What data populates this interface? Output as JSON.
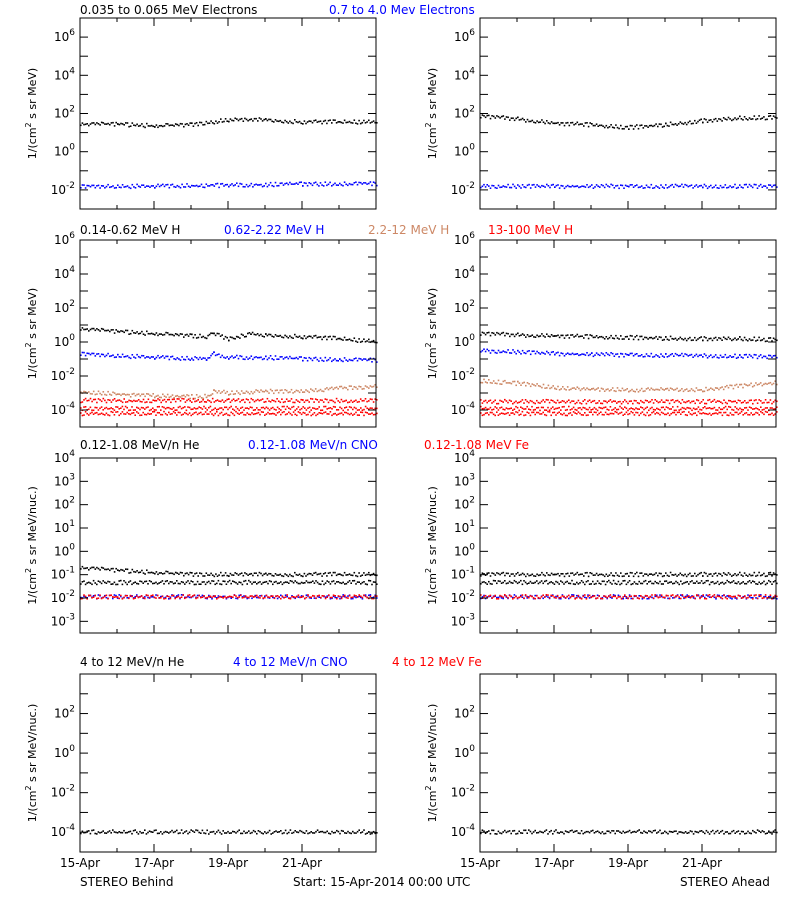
{
  "colors": {
    "black": "#000000",
    "blue": "#0000ff",
    "tan": "#cd8866",
    "red": "#ff0000"
  },
  "rows": [
    {
      "legend": [
        {
          "text": "0.035 to 0.065 MeV Electrons",
          "color": "black"
        },
        {
          "text": "0.7 to 4.0 Mev Electrons",
          "color": "blue"
        }
      ],
      "ylabel": "1/(cm² s sr MeV)",
      "ylabel_parts": {
        "pre": "1/(cm",
        "sup": "2",
        "post": " s sr MeV)"
      }
    },
    {
      "legend": [
        {
          "text": "0.14-0.62 MeV H",
          "color": "black"
        },
        {
          "text": "0.62-2.22 MeV H",
          "color": "blue"
        },
        {
          "text": "2.2-12 MeV H",
          "color": "tan"
        },
        {
          "text": "13-100 MeV H",
          "color": "red"
        }
      ],
      "ylabel": "1/(cm² s sr MeV)",
      "ylabel_parts": {
        "pre": "1/(cm",
        "sup": "2",
        "post": " s sr MeV)"
      }
    },
    {
      "legend": [
        {
          "text": "0.12-1.08 MeV/n He",
          "color": "black"
        },
        {
          "text": "0.12-1.08 MeV/n CNO",
          "color": "blue"
        },
        {
          "text": "0.12-1.08 MeV Fe",
          "color": "red"
        }
      ],
      "ylabel": "1/(cm² s sr MeV/nuc.)",
      "ylabel_parts": {
        "pre": "1/(cm",
        "sup": "2",
        "post": " s sr MeV/nuc.)"
      }
    },
    {
      "legend": [
        {
          "text": "4 to 12 MeV/n He",
          "color": "black"
        },
        {
          "text": "4 to 12 MeV/n CNO",
          "color": "blue"
        },
        {
          "text": "4 to 12 MeV Fe",
          "color": "red"
        }
      ],
      "ylabel": "1/(cm² s sr MeV/nuc.)",
      "ylabel_parts": {
        "pre": "1/(cm",
        "sup": "2",
        "post": " s sr MeV/nuc.)"
      }
    }
  ],
  "footer": {
    "left": "STEREO Behind",
    "center": "Start: 15-Apr-2014 00:00 UTC",
    "right": "STEREO Ahead"
  },
  "chart_data": [
    {
      "type": "scatter",
      "panel": "electrons-behind",
      "scale": "log",
      "ylim_exp": [
        -3,
        7
      ],
      "ticks": [
        {
          "e": -2,
          "m": "10",
          "s": "-2"
        },
        {
          "e": 0,
          "m": "10",
          "s": "0"
        },
        {
          "e": 2,
          "m": "10",
          "s": "2"
        },
        {
          "e": 4,
          "m": "10",
          "s": "4"
        },
        {
          "e": 6,
          "m": "10",
          "s": "6"
        }
      ],
      "x_ticks": [
        "15-Apr",
        "17-Apr",
        "19-Apr",
        "21-Apr"
      ],
      "x_days": [
        0,
        8
      ],
      "series": [
        {
          "color": "black",
          "x": [
            0,
            1,
            2,
            3,
            4,
            5,
            6,
            7,
            8
          ],
          "y": [
            28,
            27,
            22,
            25,
            45,
            45,
            35,
            35,
            35
          ]
        },
        {
          "color": "blue",
          "x": [
            0,
            2,
            4,
            6,
            8
          ],
          "y": [
            0.015,
            0.015,
            0.017,
            0.02,
            0.02
          ]
        }
      ]
    },
    {
      "type": "scatter",
      "panel": "electrons-ahead",
      "scale": "log",
      "ylim_exp": [
        -3,
        7
      ],
      "ticks": [
        {
          "e": -2,
          "m": "10",
          "s": "-2"
        },
        {
          "e": 0,
          "m": "10",
          "s": "0"
        },
        {
          "e": 2,
          "m": "10",
          "s": "2"
        },
        {
          "e": 4,
          "m": "10",
          "s": "4"
        },
        {
          "e": 6,
          "m": "10",
          "s": "6"
        }
      ],
      "x_ticks": [
        "15-Apr",
        "17-Apr",
        "19-Apr",
        "21-Apr"
      ],
      "x_days": [
        0,
        8
      ],
      "series": [
        {
          "color": "black",
          "x": [
            0,
            1,
            2,
            3,
            4,
            5,
            6,
            7,
            8
          ],
          "y": [
            70,
            50,
            30,
            25,
            18,
            25,
            40,
            55,
            60
          ]
        },
        {
          "color": "blue",
          "x": [
            0,
            2,
            4,
            6,
            8
          ],
          "y": [
            0.015,
            0.015,
            0.015,
            0.015,
            0.015
          ]
        }
      ]
    },
    {
      "type": "scatter",
      "panel": "protons-behind",
      "scale": "log",
      "ylim_exp": [
        -5,
        6
      ],
      "ticks": [
        {
          "e": -4,
          "m": "10",
          "s": "-4"
        },
        {
          "e": -2,
          "m": "10",
          "s": "-2"
        },
        {
          "e": 0,
          "m": "10",
          "s": "0"
        },
        {
          "e": 2,
          "m": "10",
          "s": "2"
        },
        {
          "e": 4,
          "m": "10",
          "s": "4"
        },
        {
          "e": 6,
          "m": "10",
          "s": "6"
        }
      ],
      "x_ticks": [
        "15-Apr",
        "17-Apr",
        "19-Apr",
        "21-Apr"
      ],
      "x_days": [
        0,
        8
      ],
      "series": [
        {
          "color": "black",
          "x": [
            0,
            1,
            2,
            3,
            3.4,
            3.6,
            4,
            4.6,
            5,
            6,
            7,
            8
          ],
          "y": [
            6,
            4,
            3,
            2.2,
            2,
            3,
            1.5,
            3,
            2.5,
            2,
            1.5,
            1
          ]
        },
        {
          "color": "blue",
          "x": [
            0,
            1,
            2,
            3,
            3.4,
            3.6,
            4,
            5,
            6,
            7,
            8
          ],
          "y": [
            0.2,
            0.15,
            0.12,
            0.1,
            0.1,
            0.2,
            0.12,
            0.12,
            0.1,
            0.09,
            0.08
          ]
        },
        {
          "color": "tan",
          "x": [
            0,
            1,
            2,
            3,
            3.4,
            3.6,
            4,
            5,
            6,
            7,
            8
          ],
          "y": [
            0.0012,
            0.0008,
            0.0007,
            0.0006,
            0.0006,
            0.0012,
            0.001,
            0.0012,
            0.0013,
            0.0018,
            0.0025
          ]
        },
        {
          "color": "red",
          "x": [
            0,
            2,
            4,
            6,
            8
          ],
          "y": [
            0.00035,
            0.00035,
            0.00035,
            0.00035,
            0.00035
          ]
        },
        {
          "color": "red",
          "x": [
            0,
            8
          ],
          "y": [
            0.00012,
            0.00012
          ]
        },
        {
          "color": "red",
          "x": [
            0,
            8
          ],
          "y": [
            6e-05,
            6e-05
          ]
        }
      ]
    },
    {
      "type": "scatter",
      "panel": "protons-ahead",
      "scale": "log",
      "ylim_exp": [
        -5,
        6
      ],
      "ticks": [
        {
          "e": -4,
          "m": "10",
          "s": "-4"
        },
        {
          "e": -2,
          "m": "10",
          "s": "-2"
        },
        {
          "e": 0,
          "m": "10",
          "s": "0"
        },
        {
          "e": 2,
          "m": "10",
          "s": "2"
        },
        {
          "e": 4,
          "m": "10",
          "s": "4"
        },
        {
          "e": 6,
          "m": "10",
          "s": "6"
        }
      ],
      "x_ticks": [
        "15-Apr",
        "17-Apr",
        "19-Apr",
        "21-Apr"
      ],
      "x_days": [
        0,
        8
      ],
      "series": [
        {
          "color": "black",
          "x": [
            0,
            1,
            2,
            3,
            4,
            5,
            6,
            7,
            8
          ],
          "y": [
            3,
            2.5,
            2.2,
            2,
            1.8,
            1.6,
            1.5,
            1.5,
            1.3
          ]
        },
        {
          "color": "blue",
          "x": [
            0,
            1,
            2,
            3,
            4,
            5,
            6,
            7,
            8
          ],
          "y": [
            0.3,
            0.25,
            0.2,
            0.18,
            0.17,
            0.16,
            0.15,
            0.14,
            0.13
          ]
        },
        {
          "color": "tan",
          "x": [
            0,
            1,
            2,
            3,
            4,
            5,
            6,
            7,
            8
          ],
          "y": [
            0.005,
            0.0035,
            0.002,
            0.0015,
            0.0015,
            0.0015,
            0.0015,
            0.0025,
            0.004
          ]
        },
        {
          "color": "red",
          "x": [
            0,
            8
          ],
          "y": [
            0.0003,
            0.0003
          ]
        },
        {
          "color": "red",
          "x": [
            0,
            8
          ],
          "y": [
            0.00012,
            0.00012
          ]
        },
        {
          "color": "red",
          "x": [
            0,
            8
          ],
          "y": [
            6e-05,
            6e-05
          ]
        }
      ]
    },
    {
      "type": "scatter",
      "panel": "heavy-low-behind",
      "scale": "log",
      "ylim_exp": [
        -3.5,
        4
      ],
      "ticks": [
        {
          "e": -3,
          "m": "10",
          "s": "-3"
        },
        {
          "e": -2,
          "m": "10",
          "s": "-2"
        },
        {
          "e": -1,
          "m": "10",
          "s": "-1"
        },
        {
          "e": 0,
          "m": "10",
          "s": "0"
        },
        {
          "e": 1,
          "m": "10",
          "s": "1"
        },
        {
          "e": 2,
          "m": "10",
          "s": "2"
        },
        {
          "e": 3,
          "m": "10",
          "s": "3"
        },
        {
          "e": 4,
          "m": "10",
          "s": "4"
        }
      ],
      "x_ticks": [
        "15-Apr",
        "17-Apr",
        "19-Apr",
        "21-Apr"
      ],
      "x_days": [
        0,
        8
      ],
      "series": [
        {
          "color": "black",
          "x": [
            0,
            1,
            2,
            3,
            4,
            5,
            6,
            7,
            8
          ],
          "y": [
            0.2,
            0.15,
            0.12,
            0.1,
            0.1,
            0.1,
            0.1,
            0.1,
            0.1
          ]
        },
        {
          "color": "black",
          "x": [
            0,
            8
          ],
          "y": [
            0.045,
            0.045
          ]
        },
        {
          "color": "blue",
          "x": [
            0,
            8
          ],
          "y": [
            0.011,
            0.011
          ]
        },
        {
          "color": "red",
          "x": [
            0,
            8
          ],
          "y": [
            0.011,
            0.011
          ]
        }
      ]
    },
    {
      "type": "scatter",
      "panel": "heavy-low-ahead",
      "scale": "log",
      "ylim_exp": [
        -3.5,
        4
      ],
      "ticks": [
        {
          "e": -3,
          "m": "10",
          "s": "-3"
        },
        {
          "e": -2,
          "m": "10",
          "s": "-2"
        },
        {
          "e": -1,
          "m": "10",
          "s": "-1"
        },
        {
          "e": 0,
          "m": "10",
          "s": "0"
        },
        {
          "e": 1,
          "m": "10",
          "s": "1"
        },
        {
          "e": 2,
          "m": "10",
          "s": "2"
        },
        {
          "e": 3,
          "m": "10",
          "s": "3"
        },
        {
          "e": 4,
          "m": "10",
          "s": "4"
        }
      ],
      "x_ticks": [
        "15-Apr",
        "17-Apr",
        "19-Apr",
        "21-Apr"
      ],
      "x_days": [
        0,
        8
      ],
      "series": [
        {
          "color": "black",
          "x": [
            0,
            2,
            4,
            6,
            8
          ],
          "y": [
            0.1,
            0.1,
            0.1,
            0.1,
            0.1
          ]
        },
        {
          "color": "black",
          "x": [
            0,
            8
          ],
          "y": [
            0.045,
            0.045
          ]
        },
        {
          "color": "blue",
          "x": [
            0,
            8
          ],
          "y": [
            0.011,
            0.011
          ]
        },
        {
          "color": "red",
          "x": [
            0,
            8
          ],
          "y": [
            0.011,
            0.011
          ]
        }
      ]
    },
    {
      "type": "scatter",
      "panel": "heavy-high-behind",
      "scale": "log",
      "ylim_exp": [
        -5,
        4
      ],
      "ticks": [
        {
          "e": -4,
          "m": "10",
          "s": "-4"
        },
        {
          "e": -2,
          "m": "10",
          "s": "-2"
        },
        {
          "e": 0,
          "m": "10",
          "s": "0"
        },
        {
          "e": 2,
          "m": "10",
          "s": "2"
        }
      ],
      "x_ticks": [
        "15-Apr",
        "17-Apr",
        "19-Apr",
        "21-Apr"
      ],
      "x_days": [
        0,
        8
      ],
      "series": [
        {
          "color": "black",
          "x": [
            0,
            8
          ],
          "y": [
            0.0001,
            0.0001
          ]
        }
      ]
    },
    {
      "type": "scatter",
      "panel": "heavy-high-ahead",
      "scale": "log",
      "ylim_exp": [
        -5,
        4
      ],
      "ticks": [
        {
          "e": -4,
          "m": "10",
          "s": "-4"
        },
        {
          "e": -2,
          "m": "10",
          "s": "-2"
        },
        {
          "e": 0,
          "m": "10",
          "s": "0"
        },
        {
          "e": 2,
          "m": "10",
          "s": "2"
        }
      ],
      "x_ticks": [
        "15-Apr",
        "17-Apr",
        "19-Apr",
        "21-Apr"
      ],
      "x_days": [
        0,
        8
      ],
      "series": [
        {
          "color": "black",
          "x": [
            0,
            8
          ],
          "y": [
            0.0001,
            0.0001
          ]
        }
      ]
    }
  ]
}
